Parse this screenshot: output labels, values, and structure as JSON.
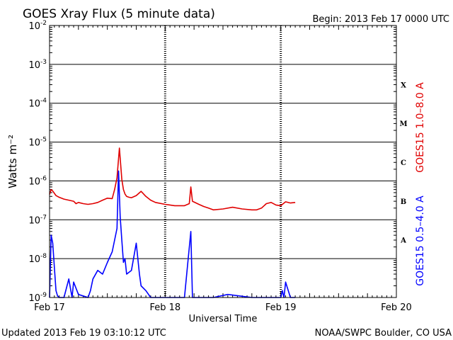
{
  "header": {
    "title": "GOES Xray Flux (5 minute data)",
    "begin": "Begin:  2013 Feb 17 0000 UTC"
  },
  "footer": {
    "updated": "Updated 2013 Feb 19 03:10:12 UTC",
    "credit": "NOAA/SWPC Boulder, CO USA"
  },
  "colors": {
    "long_channel": "#e00000",
    "short_channel": "#0000ff",
    "grid": "#000000",
    "background": "#ffffff"
  },
  "chart_data": {
    "type": "line",
    "title": "GOES Xray Flux (5 minute data)",
    "xlabel": "Universal Time",
    "ylabel": "Watts m⁻²",
    "yscale": "log",
    "ylim": [
      1e-09,
      0.01
    ],
    "xlim": [
      "2013-02-17 00:00",
      "2013-02-20 00:00"
    ],
    "x_ticks": [
      "Feb 17",
      "Feb 18",
      "Feb 19",
      "Feb 20"
    ],
    "y_ticks": [
      {
        "mant": "10",
        "exp": "-9"
      },
      {
        "mant": "10",
        "exp": "-8"
      },
      {
        "mant": "10",
        "exp": "-7"
      },
      {
        "mant": "10",
        "exp": "-6"
      },
      {
        "mant": "10",
        "exp": "-5"
      },
      {
        "mant": "10",
        "exp": "-4"
      },
      {
        "mant": "10",
        "exp": "-3"
      },
      {
        "mant": "10",
        "exp": "-2"
      }
    ],
    "flare_classes": [
      "A",
      "B",
      "C",
      "M",
      "X"
    ],
    "grid": true,
    "series": [
      {
        "name": "GOES15 1.0–8.0 A",
        "color": "#e00000",
        "x": [
          "2013-02-17 00:00",
          "2013-02-17 00:20",
          "2013-02-17 00:40",
          "2013-02-17 01:00",
          "2013-02-17 01:20",
          "2013-02-17 01:40",
          "2013-02-17 02:00",
          "2013-02-17 03:00",
          "2013-02-17 04:00",
          "2013-02-17 05:00",
          "2013-02-17 05:30",
          "2013-02-17 06:00",
          "2013-02-17 07:00",
          "2013-02-17 08:00",
          "2013-02-17 09:00",
          "2013-02-17 10:00",
          "2013-02-17 11:00",
          "2013-02-17 12:00",
          "2013-02-17 13:00",
          "2013-02-17 13:30",
          "2013-02-17 14:00",
          "2013-02-17 14:30",
          "2013-02-17 15:00",
          "2013-02-17 15:20",
          "2013-02-17 15:40",
          "2013-02-17 16:00",
          "2013-02-17 16:30",
          "2013-02-17 17:00",
          "2013-02-17 18:00",
          "2013-02-17 19:00",
          "2013-02-17 20:00",
          "2013-02-17 21:00",
          "2013-02-17 22:00",
          "2013-02-18 00:00",
          "2013-02-18 01:00",
          "2013-02-18 02:00",
          "2013-02-18 04:00",
          "2013-02-18 05:00",
          "2013-02-18 05:20",
          "2013-02-18 05:40",
          "2013-02-18 07:00",
          "2013-02-18 08:00",
          "2013-02-18 09:00",
          "2013-02-18 10:00",
          "2013-02-18 12:00",
          "2013-02-18 14:00",
          "2013-02-18 16:00",
          "2013-02-18 18:00",
          "2013-02-18 19:00",
          "2013-02-18 20:00",
          "2013-02-18 21:00",
          "2013-02-18 22:00",
          "2013-02-18 23:00",
          "2013-02-19 00:00",
          "2013-02-19 01:00",
          "2013-02-19 02:00",
          "2013-02-19 03:00"
        ],
        "y": [
          4.5e-07,
          6e-07,
          5.5e-07,
          4.8e-07,
          4.2e-07,
          4e-07,
          3.8e-07,
          3.4e-07,
          3.2e-07,
          3e-07,
          2.6e-07,
          2.8e-07,
          2.6e-07,
          2.5e-07,
          2.6e-07,
          2.8e-07,
          3.2e-07,
          3.6e-07,
          3.5e-07,
          6e-07,
          1.2e-06,
          7e-06,
          1.1e-06,
          6e-07,
          4.6e-07,
          4e-07,
          3.8e-07,
          3.7e-07,
          4.2e-07,
          5.4e-07,
          4e-07,
          3.2e-07,
          2.8e-07,
          2.5e-07,
          2.4e-07,
          2.3e-07,
          2.3e-07,
          2.6e-07,
          7e-07,
          3e-07,
          2.5e-07,
          2.2e-07,
          2e-07,
          1.8e-07,
          1.9e-07,
          2.1e-07,
          1.9e-07,
          1.8e-07,
          1.8e-07,
          2e-07,
          2.6e-07,
          2.8e-07,
          2.4e-07,
          2.3e-07,
          2.9e-07,
          2.7e-07,
          2.8e-07
        ]
      },
      {
        "name": "GOES15 0.5–4.0 A",
        "color": "#0000ff",
        "x": [
          "2013-02-17 00:00",
          "2013-02-17 00:20",
          "2013-02-17 00:40",
          "2013-02-17 01:00",
          "2013-02-17 01:20",
          "2013-02-17 01:40",
          "2013-02-17 02:00",
          "2013-02-17 03:00",
          "2013-02-17 04:00",
          "2013-02-17 04:40",
          "2013-02-17 05:00",
          "2013-02-17 06:00",
          "2013-02-17 08:00",
          "2013-02-17 08:30",
          "2013-02-17 09:00",
          "2013-02-17 10:00",
          "2013-02-17 11:00",
          "2013-02-17 12:00",
          "2013-02-17 13:00",
          "2013-02-17 13:30",
          "2013-02-17 14:00",
          "2013-02-17 14:20",
          "2013-02-17 14:40",
          "2013-02-17 15:00",
          "2013-02-17 15:20",
          "2013-02-17 15:40",
          "2013-02-17 16:00",
          "2013-02-17 17:00",
          "2013-02-17 18:00",
          "2013-02-17 18:40",
          "2013-02-17 19:00",
          "2013-02-17 20:00",
          "2013-02-17 21:00",
          "2013-02-17 22:00",
          "2013-02-18 01:00",
          "2013-02-18 04:00",
          "2013-02-18 05:20",
          "2013-02-18 05:40",
          "2013-02-18 08:00",
          "2013-02-18 10:00",
          "2013-02-18 13:00",
          "2013-02-18 18:00",
          "2013-02-18 21:00",
          "2013-02-19 00:00",
          "2013-02-19 00:20",
          "2013-02-19 00:40",
          "2013-02-19 01:00",
          "2013-02-19 02:00",
          "2013-02-19 03:00"
        ],
        "y": [
          1e-09,
          4e-08,
          2.5e-08,
          6e-09,
          1.5e-09,
          1.1e-09,
          1e-09,
          1e-09,
          3e-09,
          1e-09,
          2.5e-09,
          1.2e-09,
          1e-09,
          1.5e-09,
          3e-09,
          5e-09,
          4e-09,
          8e-09,
          1.5e-08,
          3e-08,
          6e-08,
          1.8e-06,
          1.2e-07,
          3e-08,
          8e-09,
          1e-08,
          4e-09,
          5e-09,
          2.5e-08,
          4e-09,
          2e-09,
          1.5e-09,
          1e-09,
          1e-09,
          1e-09,
          1e-09,
          5e-08,
          1e-09,
          1e-09,
          1e-09,
          1.2e-09,
          1e-09,
          1e-09,
          1e-09,
          1.5e-09,
          1e-09,
          2.5e-09,
          1e-09,
          1e-09
        ]
      }
    ]
  }
}
